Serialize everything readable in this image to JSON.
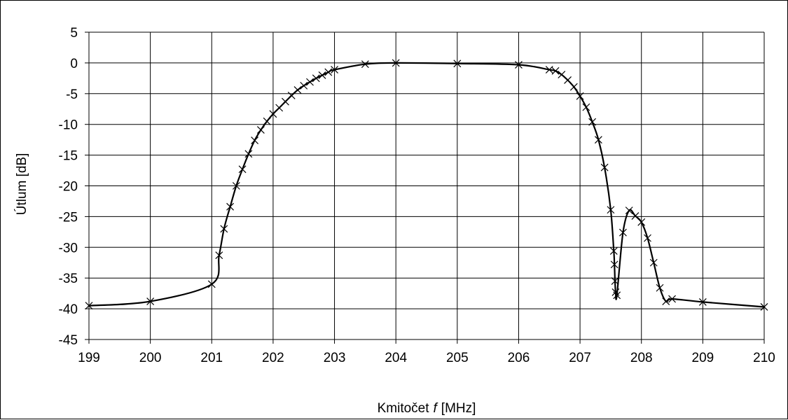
{
  "chart_data": {
    "type": "line",
    "title": "",
    "xlabel": "Kmitočet",
    "xlabel_var": "f",
    "xlabel_unit": "[MHz]",
    "ylabel": "Útlum [dB]",
    "xlim": [
      199,
      210
    ],
    "ylim": [
      -45,
      5
    ],
    "xticks": [
      199,
      200,
      201,
      202,
      203,
      204,
      205,
      206,
      207,
      208,
      209,
      210
    ],
    "yticks": [
      5,
      0,
      -5,
      -10,
      -15,
      -20,
      -25,
      -30,
      -35,
      -40,
      -45
    ],
    "grid": true,
    "legend": "none",
    "line_color": "#000000",
    "marker": "x",
    "series": [
      {
        "x": [
          199,
          200,
          201,
          201.12,
          201.2,
          201.3,
          201.4,
          201.5,
          201.6,
          201.7,
          201.8,
          201.9,
          202,
          202.1,
          202.2,
          202.3,
          202.4,
          202.5,
          202.6,
          202.7,
          202.8,
          202.9,
          203,
          203.5,
          204,
          205,
          206,
          206.5,
          206.6,
          206.7,
          206.8,
          206.9,
          207,
          207.1,
          207.2,
          207.3,
          207.4,
          207.5,
          207.55,
          207.56,
          207.57,
          207.58,
          207.6,
          207.7,
          207.8,
          207.9,
          208,
          208.1,
          208.2,
          208.3,
          208.4,
          208.5,
          209,
          210
        ],
        "y": [
          -39.5,
          -38.8,
          -36,
          -31.3,
          -27,
          -23.4,
          -20,
          -17.3,
          -14.8,
          -12.6,
          -10.9,
          -9.5,
          -8.3,
          -7.3,
          -6.3,
          -5.3,
          -4.4,
          -3.7,
          -3.1,
          -2.5,
          -2,
          -1.5,
          -1.1,
          -0.2,
          0,
          -0.1,
          -0.3,
          -1.1,
          -1.3,
          -1.9,
          -2.8,
          -3.9,
          -5.4,
          -7.2,
          -9.6,
          -12.5,
          -17,
          -23.9,
          -30.6,
          -32.8,
          -35.5,
          -37.3,
          -37.8,
          -27.6,
          -24,
          -24.9,
          -25.9,
          -28.5,
          -32.5,
          -36.6,
          -38.8,
          -38.4,
          -38.9,
          -39.7
        ]
      }
    ]
  }
}
